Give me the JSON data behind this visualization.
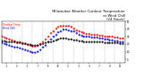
{
  "title": "Milwaukee Weather Outdoor Temperature vs Wind Chill (24 Hours)",
  "background_color": "#000000",
  "temp_color": "#ff0000",
  "windchill_color": "#0000ff",
  "black_color": "#000000",
  "grid_color": "#888888",
  "dot_size": 2.5,
  "hours": [
    0,
    0.5,
    1,
    1.5,
    2,
    2.5,
    3,
    3.5,
    4,
    4.5,
    5,
    5.5,
    6,
    6.5,
    7,
    7.5,
    8,
    8.5,
    9,
    9.5,
    10,
    10.5,
    11,
    11.5,
    12,
    12.5,
    13,
    13.5,
    14,
    14.5,
    15,
    15.5,
    16,
    16.5,
    17,
    17.5,
    18,
    18.5,
    19,
    19.5,
    20,
    20.5,
    21,
    21.5,
    22,
    22.5,
    23,
    23.5
  ],
  "temp": [
    30,
    29,
    28,
    27,
    26,
    25,
    24,
    23,
    22,
    21,
    20,
    19,
    18,
    18,
    19,
    21,
    24,
    27,
    31,
    35,
    38,
    41,
    43,
    44,
    45,
    45,
    44,
    43,
    41,
    39,
    37,
    36,
    35,
    34,
    34,
    33,
    33,
    33,
    32,
    32,
    31,
    31,
    30,
    30,
    29,
    29,
    28,
    28
  ],
  "windchill": [
    22,
    21,
    20,
    19,
    18,
    17,
    16,
    15,
    14,
    13,
    12,
    11,
    10,
    10,
    11,
    13,
    16,
    19,
    23,
    27,
    30,
    33,
    36,
    38,
    40,
    40,
    39,
    38,
    37,
    35,
    33,
    32,
    31,
    30,
    30,
    29,
    29,
    29,
    28,
    28,
    27,
    27,
    26,
    26,
    25,
    25,
    24,
    24
  ],
  "dewpoint": [
    25,
    25,
    24,
    24,
    23,
    23,
    22,
    22,
    21,
    21,
    20,
    20,
    19,
    19,
    19,
    20,
    21,
    22,
    23,
    24,
    25,
    26,
    27,
    28,
    28,
    28,
    27,
    27,
    26,
    26,
    25,
    25,
    24,
    24,
    24,
    24,
    23,
    23,
    23,
    23,
    22,
    22,
    22,
    22,
    22,
    22,
    21,
    21
  ],
  "ylim": [
    -5,
    50
  ],
  "xlim": [
    0,
    24
  ],
  "ytick_values": [
    0,
    10,
    20,
    30,
    40,
    50
  ],
  "xtick_positions": [
    1,
    3,
    5,
    7,
    9,
    11,
    13,
    15,
    17,
    19,
    21,
    23
  ],
  "xtick_labels": [
    "1",
    "3",
    "5",
    "7",
    "9",
    "11",
    "1",
    "3",
    "5",
    "7",
    "9",
    "11"
  ],
  "legend_text_temp": "Outdoor Temp",
  "legend_text_wc": "Wind Chill"
}
